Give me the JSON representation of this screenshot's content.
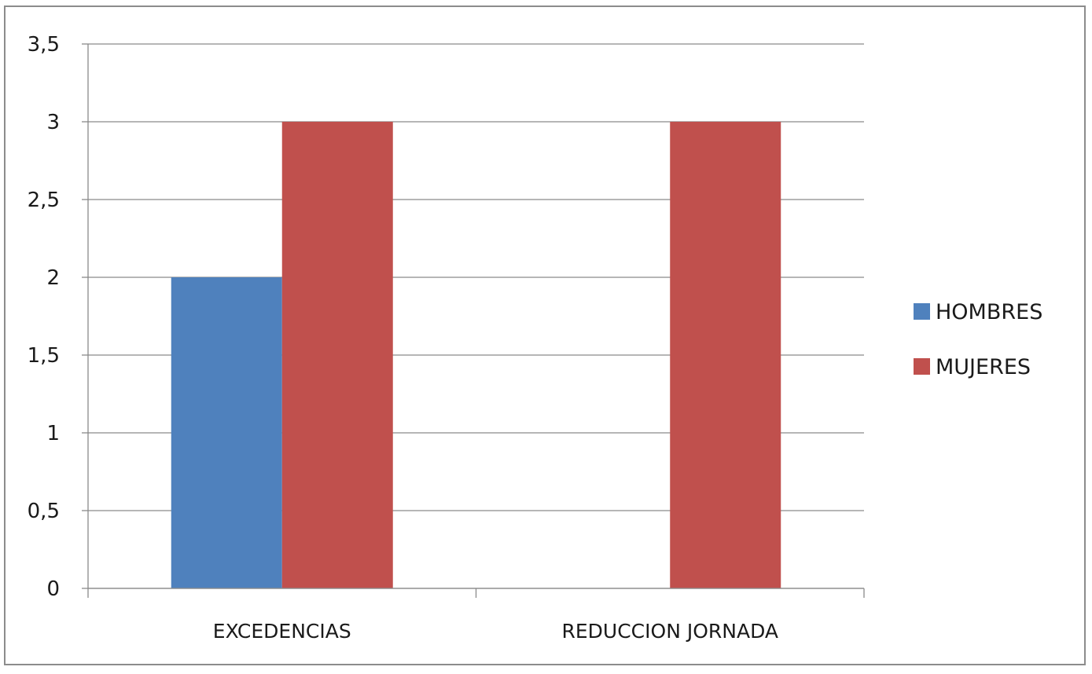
{
  "chart_data": {
    "type": "bar",
    "categories": [
      "EXCEDENCIAS",
      "REDUCCION JORNADA"
    ],
    "series": [
      {
        "name": "HOMBRES",
        "values": [
          2,
          0
        ],
        "color": "#4f81bd"
      },
      {
        "name": "MUJERES",
        "values": [
          3,
          3
        ],
        "color": "#c0504d"
      }
    ],
    "title": "",
    "xlabel": "",
    "ylabel": "",
    "ylim": [
      0,
      3.5
    ],
    "yticks": [
      {
        "value": 0,
        "label": "0"
      },
      {
        "value": 0.5,
        "label": "0,5"
      },
      {
        "value": 1,
        "label": "1"
      },
      {
        "value": 1.5,
        "label": "1,5"
      },
      {
        "value": 2,
        "label": "2"
      },
      {
        "value": 2.5,
        "label": "2,5"
      },
      {
        "value": 3,
        "label": "3"
      },
      {
        "value": 3.5,
        "label": "3,5"
      }
    ],
    "grid": true,
    "legend_position": "right"
  }
}
